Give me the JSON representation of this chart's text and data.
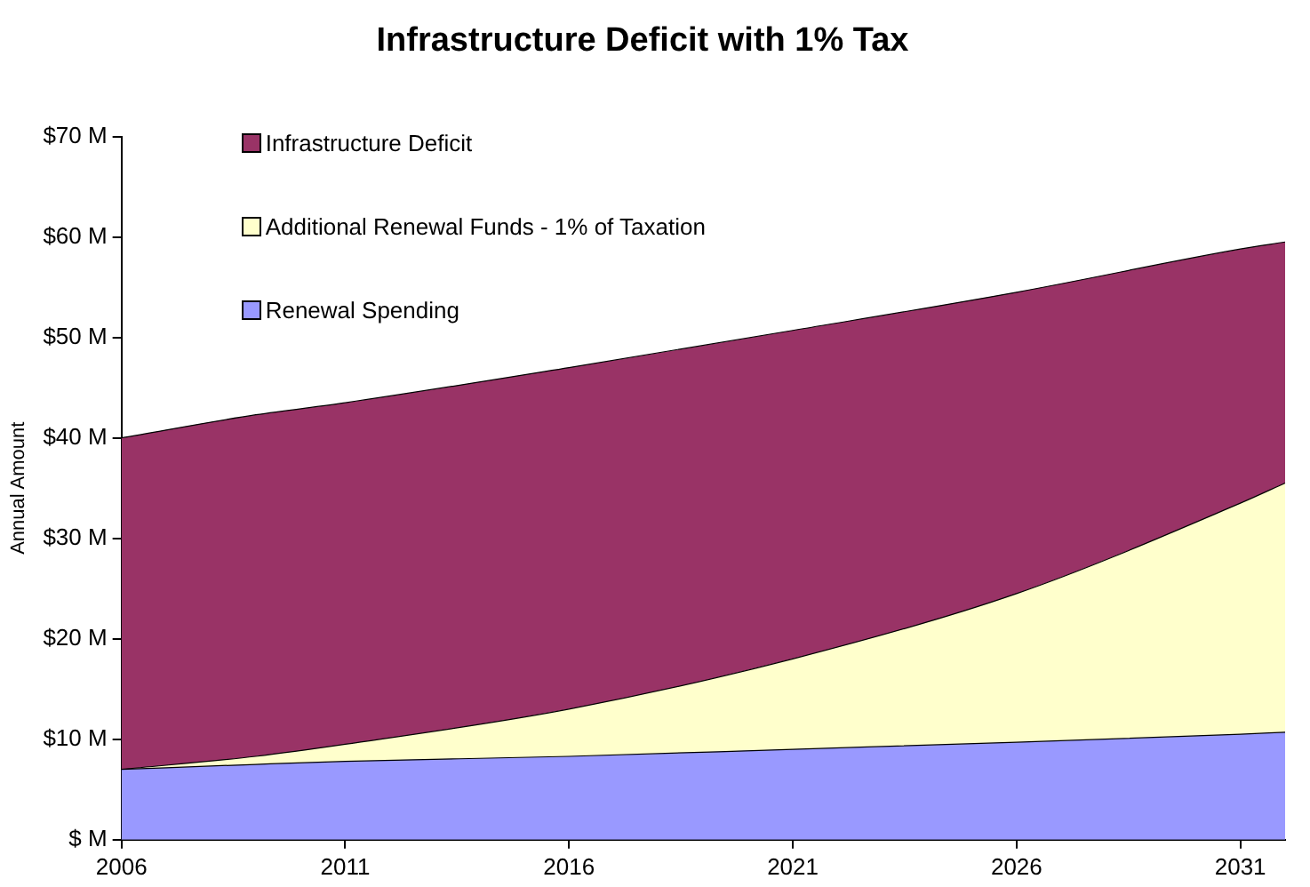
{
  "chart_data": {
    "type": "area",
    "title": "Infrastructure Deficit with 1% Tax",
    "ylabel": "Annual Amount",
    "stacked": true,
    "x": [
      2006,
      2009,
      2011,
      2016,
      2021,
      2026,
      2031,
      2032
    ],
    "series": [
      {
        "name": "Renewal Spending",
        "color": "#9999ff",
        "values": [
          7.0,
          7.5,
          7.8,
          8.3,
          9.0,
          9.7,
          10.5,
          10.7
        ]
      },
      {
        "name": "Additional Renewal Funds - 1% of Taxation",
        "color": "#ffffcc",
        "values": [
          0,
          0.8,
          1.7,
          4.7,
          9.0,
          14.8,
          23.0,
          24.8
        ]
      },
      {
        "name": "Infrastructure Deficit",
        "color": "#993366",
        "values": [
          33.0,
          34.0,
          34.0,
          34.0,
          32.7,
          30.0,
          25.3,
          24.0
        ]
      }
    ],
    "xlim": [
      2006,
      2032
    ],
    "xticks": [
      2006,
      2011,
      2016,
      2021,
      2026,
      2031
    ],
    "ylim": [
      0,
      70
    ],
    "yticks": [
      {
        "value": 0,
        "label": "$ M"
      },
      {
        "value": 10,
        "label": "$10 M"
      },
      {
        "value": 20,
        "label": "$20 M"
      },
      {
        "value": 30,
        "label": "$30 M"
      },
      {
        "value": 40,
        "label": "$40 M"
      },
      {
        "value": 50,
        "label": "$50 M"
      },
      {
        "value": 60,
        "label": "$60 M"
      },
      {
        "value": 70,
        "label": "$70 M"
      }
    ],
    "grid": false,
    "legend": "top left"
  }
}
